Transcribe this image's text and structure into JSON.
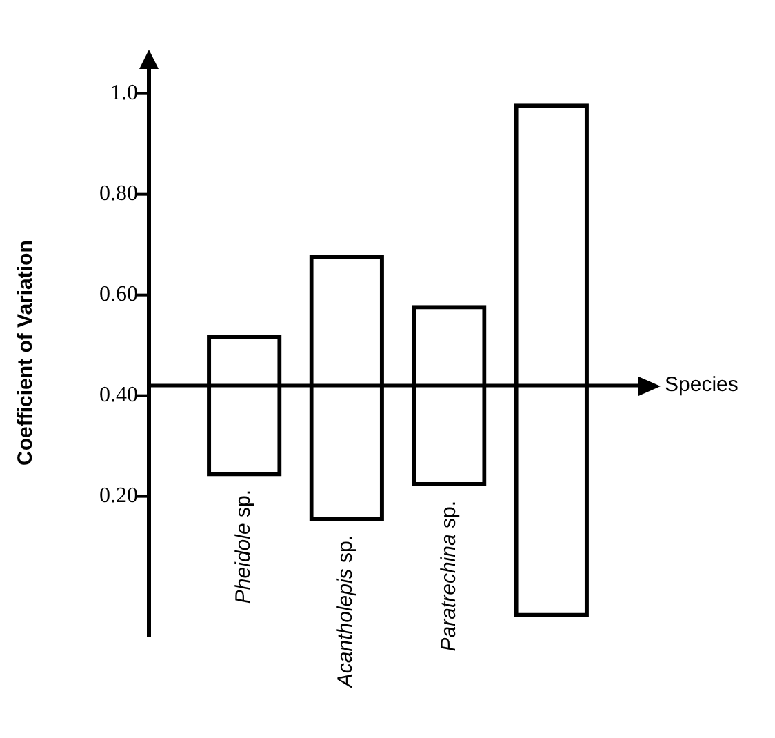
{
  "chart_data": {
    "type": "bar",
    "ylabel": "Coefficient of Variation",
    "xlabel": "Species",
    "categories": [
      "Pheidole sp.",
      "Acantholepis sp.",
      "Paratrechina sp.",
      null
    ],
    "base": [
      0.24,
      0.15,
      0.22,
      -0.04
    ],
    "values": [
      0.28,
      0.53,
      0.36,
      1.02
    ],
    "color": "#000000",
    "ylim": [
      -0.08,
      1.05
    ],
    "yticks": [
      {
        "value": 0.2,
        "label": "0.20"
      },
      {
        "value": 0.4,
        "label": "0.40"
      },
      {
        "value": 0.6,
        "label": "0.60"
      },
      {
        "value": 0.8,
        "label": "0.80"
      },
      {
        "value": 1,
        "label": "1.0"
      }
    ],
    "ref_lines": [
      {
        "axis": "y",
        "value": 0.42
      }
    ],
    "grid": false,
    "legend": false
  }
}
